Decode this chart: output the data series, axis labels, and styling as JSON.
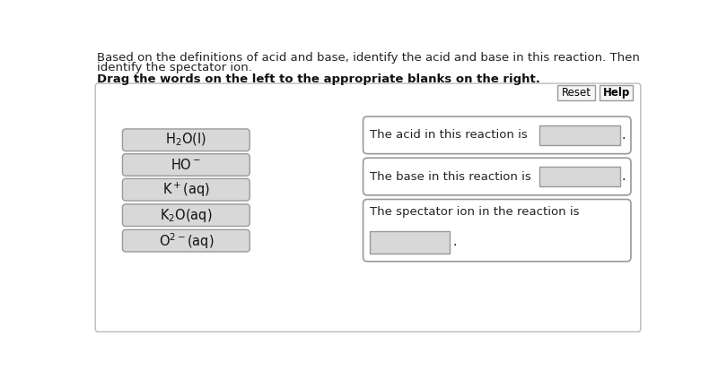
{
  "bg_color": "#ffffff",
  "header_text1": "Based on the definitions of acid and base, identify the acid and base in this reaction. Then",
  "header_text2": "identify the spectator ion.",
  "bold_instruction": "Drag the words on the left to the appropriate blanks on the right.",
  "left_labels": [
    "$\\mathregular{H_2O(l)}$",
    "$\\mathregular{HO^-}$",
    "$\\mathregular{K^+(aq)}$",
    "$\\mathregular{K_2O(aq)}$",
    "$\\mathregular{O^{2-}(aq)}$"
  ],
  "reset_label": "Reset",
  "help_label": "Help",
  "acid_text": "The acid in this reaction is",
  "base_text": "The base in this reaction is",
  "spec_text": "The spectator ion in the reaction is",
  "box_fill": "#d8d8d8",
  "box_border": "#999999",
  "panel_border": "#bbbbbb",
  "btn_fill": "#f5f5f5",
  "btn_border": "#999999"
}
